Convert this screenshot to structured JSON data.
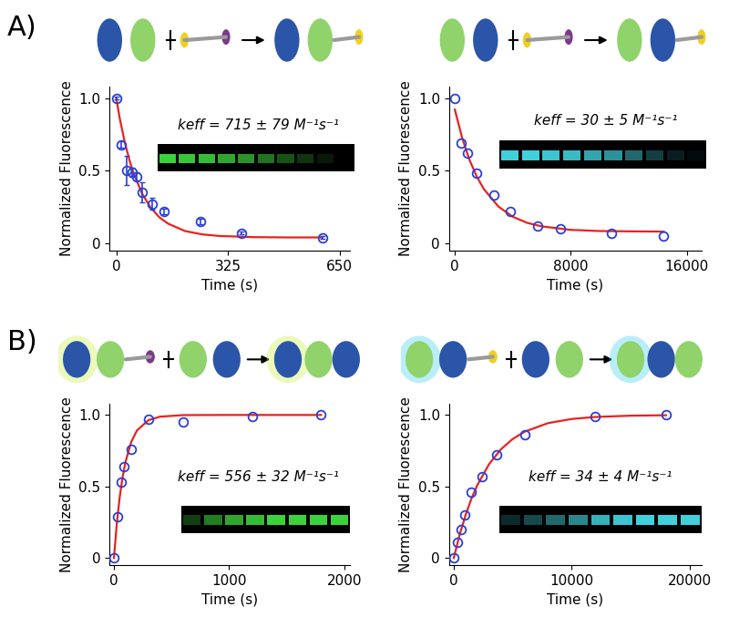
{
  "panel_labels": [
    "A)",
    "B)"
  ],
  "chart_data": [
    {
      "type": "scatter",
      "xlabel": "Time (s)",
      "ylabel": "Normalized Fluorescence",
      "annotation": "keff = 715 ± 79 M⁻¹s⁻¹",
      "xlim": [
        -20,
        680
      ],
      "xticks": [
        0,
        325,
        650
      ],
      "ylim": [
        -0.05,
        1.08
      ],
      "yticks": [
        0,
        0.5,
        {
          "value": 1,
          "label": "1.0"
        }
      ],
      "series": [
        {
          "type": "scatter",
          "color": "#2b3fd6",
          "marker": "circle",
          "x": [
            0,
            15,
            30,
            45,
            60,
            75,
            105,
            140,
            245,
            365,
            600
          ],
          "values": [
            1.0,
            0.68,
            0.5,
            0.49,
            0.46,
            0.35,
            0.27,
            0.22,
            0.15,
            0.07,
            0.04
          ],
          "errors": [
            0.01,
            0.02,
            0.1,
            0.03,
            0.03,
            0.07,
            0.04,
            0.02,
            0.02,
            0.01,
            0.01
          ]
        },
        {
          "type": "line",
          "color": "#e8231e",
          "x": [
            0,
            10,
            25,
            40,
            50,
            75,
            100,
            125,
            150,
            200,
            250,
            300,
            400,
            500,
            600
          ],
          "values": [
            1.0,
            0.863,
            0.693,
            0.559,
            0.485,
            0.343,
            0.246,
            0.18,
            0.136,
            0.084,
            0.061,
            0.05,
            0.042,
            0.04,
            0.04
          ]
        }
      ]
    },
    {
      "type": "scatter",
      "xlabel": "Time (s)",
      "ylabel": "Normalized Fluorescence",
      "annotation": "keff = 30 ± 5 M⁻¹s⁻¹",
      "xlim": [
        -400,
        17000
      ],
      "xticks": [
        0,
        8000,
        16000
      ],
      "ylim": [
        -0.05,
        1.08
      ],
      "yticks": [
        0,
        0.5,
        {
          "value": 1,
          "label": "1.0"
        }
      ],
      "series": [
        {
          "type": "scatter",
          "color": "#2b3fd6",
          "marker": "circle",
          "x": [
            0,
            400,
            900,
            1500,
            2700,
            3800,
            5700,
            7300,
            10800,
            14400
          ],
          "values": [
            1.0,
            0.69,
            0.62,
            0.48,
            0.33,
            0.22,
            0.12,
            0.1,
            0.07,
            0.05
          ]
        },
        {
          "type": "line",
          "color": "#e8231e",
          "x": [
            0,
            500,
            1000,
            1500,
            2000,
            3000,
            4000,
            5000,
            6000,
            8000,
            10000,
            12000,
            14400
          ],
          "values": [
            0.92,
            0.726,
            0.576,
            0.461,
            0.373,
            0.253,
            0.182,
            0.14,
            0.116,
            0.092,
            0.084,
            0.082,
            0.08
          ]
        }
      ]
    },
    {
      "type": "scatter",
      "xlabel": "Time (s)",
      "ylabel": "Normalized Fluorescence",
      "annotation": "keff = 556 ± 32 M⁻¹s⁻¹",
      "xlim": [
        -40,
        2050
      ],
      "xticks": [
        0,
        1000,
        2000
      ],
      "ylim": [
        -0.05,
        1.08
      ],
      "yticks": [
        0,
        0.5,
        {
          "value": 1,
          "label": "1.0"
        }
      ],
      "series": [
        {
          "type": "scatter",
          "color": "#2b3fd6",
          "marker": "circle",
          "x": [
            0,
            30,
            60,
            90,
            150,
            300,
            600,
            1200,
            1800
          ],
          "values": [
            0.0,
            0.29,
            0.53,
            0.64,
            0.76,
            0.97,
            0.95,
            0.99,
            1.0
          ]
        },
        {
          "type": "line",
          "color": "#e8231e",
          "x": [
            0,
            25,
            50,
            75,
            100,
            150,
            200,
            300,
            400,
            600,
            1000,
            1800
          ],
          "values": [
            0.0,
            0.243,
            0.426,
            0.565,
            0.671,
            0.811,
            0.892,
            0.964,
            0.988,
            0.999,
            1.0,
            1.0
          ]
        }
      ]
    },
    {
      "type": "scatter",
      "xlabel": "Time (s)",
      "ylabel": "Normalized Fluorescence",
      "annotation": "keff = 34 ± 4 M⁻¹s⁻¹",
      "xlim": [
        -400,
        21000
      ],
      "xticks": [
        0,
        10000,
        20000
      ],
      "ylim": [
        -0.05,
        1.08
      ],
      "yticks": [
        0,
        0.5,
        {
          "value": 1,
          "label": "1.0"
        }
      ],
      "series": [
        {
          "type": "scatter",
          "color": "#2b3fd6",
          "marker": "circle",
          "x": [
            0,
            300,
            600,
            900,
            1500,
            2400,
            3600,
            6000,
            12000,
            18000
          ],
          "values": [
            0.0,
            0.11,
            0.2,
            0.3,
            0.46,
            0.57,
            0.72,
            0.86,
            0.99,
            1.0
          ]
        },
        {
          "type": "line",
          "color": "#e8231e",
          "x": [
            0,
            500,
            1000,
            1500,
            2000,
            3000,
            4000,
            5000,
            6000,
            8000,
            10000,
            12000,
            15000,
            18000
          ],
          "values": [
            0.0,
            0.164,
            0.3,
            0.415,
            0.51,
            0.657,
            0.76,
            0.832,
            0.883,
            0.943,
            0.972,
            0.986,
            0.995,
            0.998
          ]
        }
      ]
    }
  ]
}
